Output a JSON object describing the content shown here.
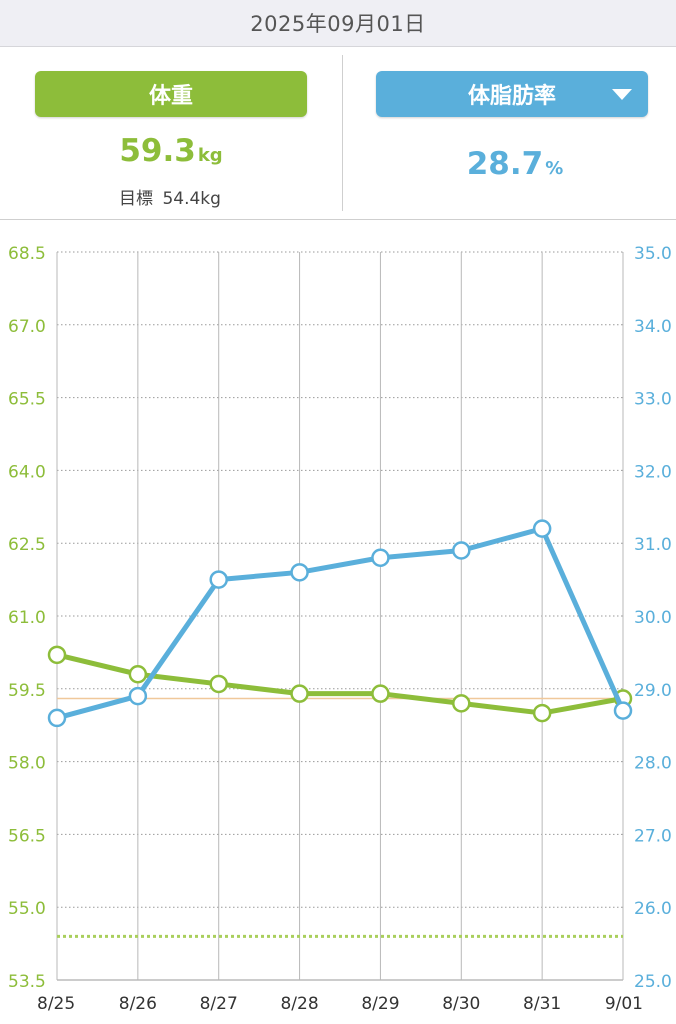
{
  "header": {
    "date": "2025年09月01日"
  },
  "weight_panel": {
    "label": "体重",
    "value": "59.3",
    "unit": "kg",
    "target_label": "目標",
    "target_value": "54.4kg"
  },
  "fat_panel": {
    "label": "体脂肪率",
    "value": "28.7",
    "unit": "%",
    "dropdown_icon": "caret-down-icon"
  },
  "colors": {
    "weight": "#8dbd3a",
    "fat": "#5aafdb",
    "grid": "#b8b8b8",
    "target_line": "#a9cf5c"
  },
  "chart_data": {
    "type": "line",
    "categories": [
      "8/25",
      "8/26",
      "8/27",
      "8/28",
      "8/29",
      "8/30",
      "8/31",
      "9/01"
    ],
    "left_axis": {
      "ticks": [
        "68.5",
        "67.0",
        "65.5",
        "64.0",
        "62.5",
        "61.0",
        "59.5",
        "58.0",
        "56.5",
        "55.0",
        "53.5"
      ],
      "ylim": [
        53.5,
        68.5
      ]
    },
    "right_axis": {
      "ticks": [
        "35.0",
        "34.0",
        "33.0",
        "32.0",
        "31.0",
        "30.0",
        "29.0",
        "28.0",
        "27.0",
        "26.0",
        "25.0"
      ],
      "ylim": [
        25.0,
        35.0
      ]
    },
    "series": [
      {
        "name": "体重",
        "axis": "left",
        "values": [
          60.2,
          59.8,
          59.6,
          59.4,
          59.4,
          59.2,
          59.0,
          59.3
        ]
      },
      {
        "name": "体脂肪率",
        "axis": "right",
        "values": [
          28.6,
          28.9,
          30.5,
          30.6,
          30.8,
          30.9,
          31.2,
          28.7
        ]
      }
    ],
    "current_weight_line": 59.3,
    "target_weight_line": 54.4,
    "grid": true
  }
}
